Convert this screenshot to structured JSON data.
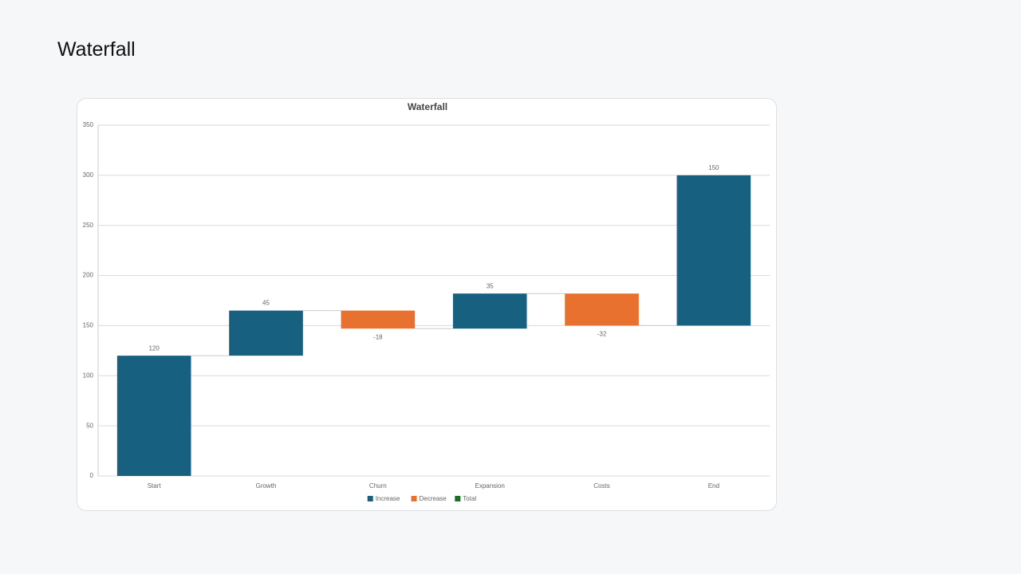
{
  "page_title": "Waterfall",
  "chart_data": {
    "type": "waterfall",
    "title": "Waterfall",
    "categories": [
      "Start",
      "Growth",
      "Churn",
      "Expansion",
      "Costs",
      "End"
    ],
    "values": [
      120,
      45,
      -18,
      35,
      -32,
      150
    ],
    "legend": [
      {
        "name": "Increase",
        "color": "#17607f"
      },
      {
        "name": "Decrease",
        "color": "#e8712f"
      },
      {
        "name": "Total",
        "color": "#1e6b2a"
      }
    ],
    "ylim": [
      0,
      350
    ],
    "yticks": [
      0,
      50,
      100,
      150,
      200,
      250,
      300,
      350
    ],
    "grid": true
  }
}
